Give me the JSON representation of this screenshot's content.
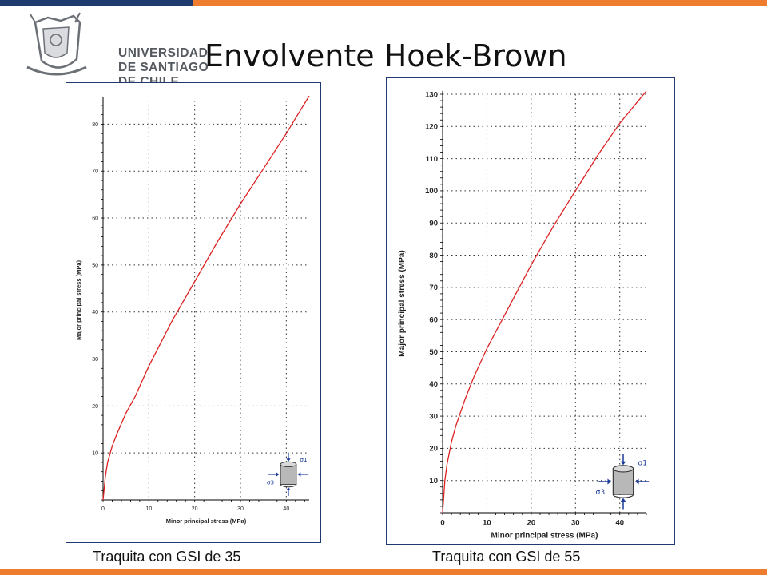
{
  "header": {
    "logo_lines": [
      "UNIVERSIDAD",
      "DE SANTIAGO",
      "DE CHILE"
    ],
    "title": "Envolvente Hoek-Brown"
  },
  "colors": {
    "accent_blue": "#1f3a6e",
    "accent_orange": "#ee7d2f",
    "curve": "#dd2222",
    "grid": "#333333"
  },
  "captions": [
    "Traquita con GSI de 35",
    "Traquita con GSI de 55"
  ],
  "chart_data": [
    {
      "type": "line",
      "title": "",
      "xlabel": "Minor principal stress (MPa)",
      "ylabel": "Major principal stress (MPa)",
      "xlim": [
        0,
        45
      ],
      "ylim": [
        0,
        85
      ],
      "xticks": [
        0,
        10,
        20,
        30,
        40
      ],
      "yticks": [
        10,
        20,
        30,
        40,
        50,
        60,
        70,
        80
      ],
      "grid": true,
      "inset_icon": "triaxial-cylinder-icon",
      "inset_labels": {
        "sigma1": "σ1",
        "sigma3": "σ3"
      },
      "series": [
        {
          "x": [
            0,
            0.5,
            1,
            2,
            3,
            5,
            7,
            10,
            15,
            20,
            25,
            30,
            35,
            40,
            45
          ],
          "y": [
            0,
            5,
            8,
            11.5,
            14,
            18.5,
            22,
            28.5,
            38,
            46.5,
            55,
            63,
            70.5,
            78,
            86
          ]
        }
      ]
    },
    {
      "type": "line",
      "title": "",
      "xlabel": "Minor principal stress (MPa)",
      "ylabel": "Major principal stress (MPa)",
      "xlim": [
        0,
        46
      ],
      "ylim": [
        0,
        130
      ],
      "xticks": [
        0,
        10,
        20,
        30,
        40
      ],
      "yticks": [
        10,
        20,
        30,
        40,
        50,
        60,
        70,
        80,
        90,
        100,
        110,
        120,
        130
      ],
      "grid": true,
      "inset_icon": "triaxial-cylinder-icon",
      "inset_labels": {
        "sigma1": "σ1",
        "sigma3": "σ3"
      },
      "series": [
        {
          "x": [
            0,
            0.5,
            1,
            2,
            3,
            5,
            7,
            10,
            15,
            20,
            25,
            30,
            35,
            40,
            46
          ],
          "y": [
            0,
            10,
            15,
            22,
            27,
            35,
            42,
            51,
            64,
            77,
            89,
            100,
            111,
            121,
            131
          ]
        }
      ]
    }
  ]
}
